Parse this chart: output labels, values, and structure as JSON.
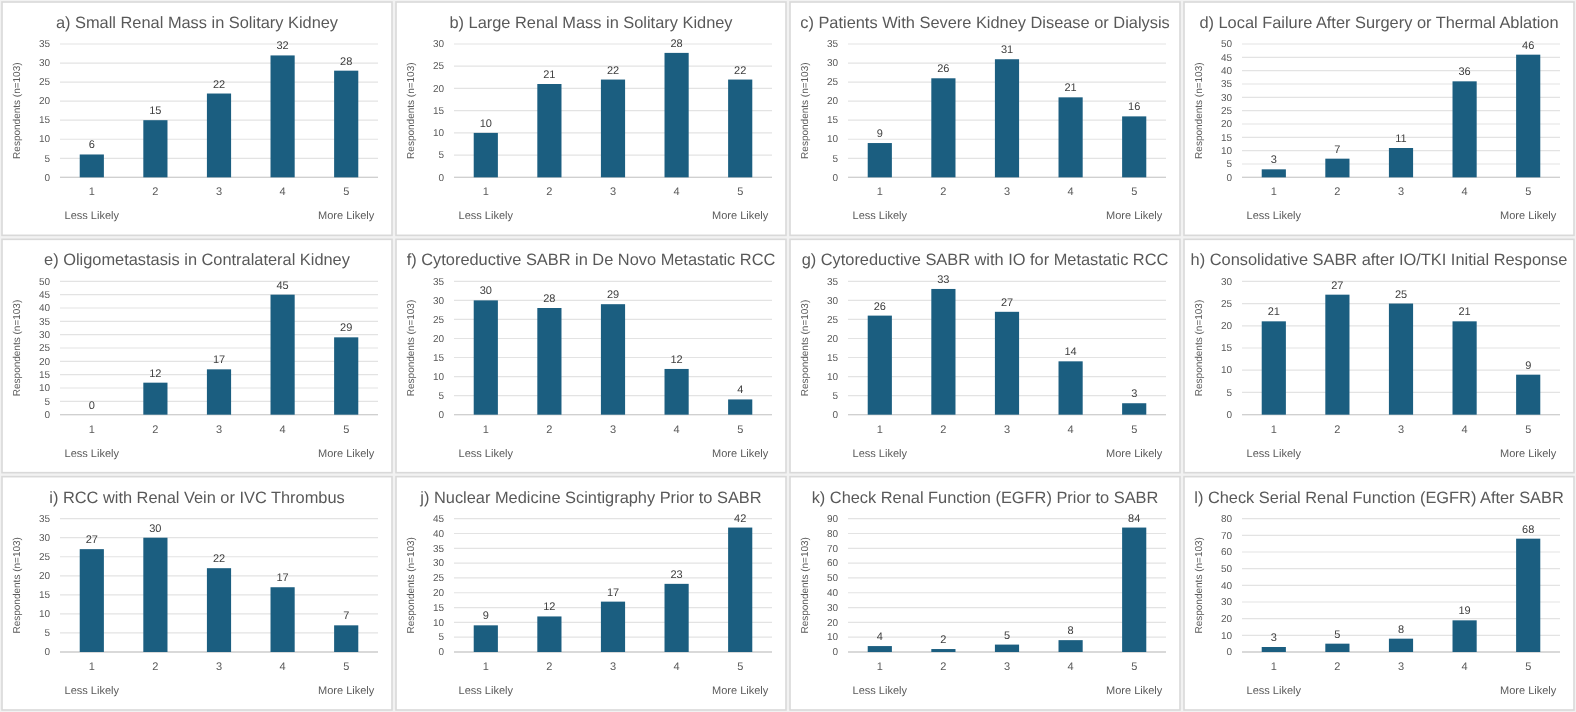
{
  "chart_data": [
    {
      "type": "bar",
      "title": "a) Small Renal Mass in Solitary Kidney",
      "ylabel": "Respondents (n=103)",
      "categories": [
        "1",
        "2",
        "3",
        "4",
        "5"
      ],
      "values": [
        6,
        15,
        22,
        32,
        28
      ],
      "color": "#1b5e80",
      "ylim": [
        0,
        35
      ],
      "yticks": [
        0,
        5,
        10,
        15,
        20,
        25,
        30,
        35
      ],
      "grid": "y",
      "data_labels": true,
      "annotations": [
        "Less Likely",
        "More Likely"
      ]
    },
    {
      "type": "bar",
      "title": "b) Large Renal Mass in Solitary Kidney",
      "ylabel": "Respondents (n=103)",
      "categories": [
        "1",
        "2",
        "3",
        "4",
        "5"
      ],
      "values": [
        10,
        21,
        22,
        28,
        22
      ],
      "color": "#1b5e80",
      "ylim": [
        0,
        30
      ],
      "yticks": [
        0,
        5,
        10,
        15,
        20,
        25,
        30
      ],
      "grid": "y",
      "data_labels": true,
      "annotations": [
        "Less Likely",
        "More Likely"
      ]
    },
    {
      "type": "bar",
      "title": "c) Patients With Severe Kidney Disease or Dialysis",
      "ylabel": "Respondents (n=103)",
      "categories": [
        "1",
        "2",
        "3",
        "4",
        "5"
      ],
      "values": [
        9,
        26,
        31,
        21,
        16
      ],
      "color": "#1b5e80",
      "ylim": [
        0,
        35
      ],
      "yticks": [
        0,
        5,
        10,
        15,
        20,
        25,
        30,
        35
      ],
      "grid": "y",
      "data_labels": true,
      "annotations": [
        "Less Likely",
        "More Likely"
      ]
    },
    {
      "type": "bar",
      "title": "d) Local Failure After Surgery or Thermal Ablation",
      "ylabel": "Respondents (n=103)",
      "categories": [
        "1",
        "2",
        "3",
        "4",
        "5"
      ],
      "values": [
        3,
        7,
        11,
        36,
        46
      ],
      "color": "#1b5e80",
      "ylim": [
        0,
        50
      ],
      "yticks": [
        0,
        5,
        10,
        15,
        20,
        25,
        30,
        35,
        40,
        45,
        50
      ],
      "grid": "y",
      "data_labels": true,
      "annotations": [
        "Less Likely",
        "More Likely"
      ]
    },
    {
      "type": "bar",
      "title": "e) Oligometastasis in Contralateral Kidney",
      "ylabel": "Respondents (n=103)",
      "categories": [
        "1",
        "2",
        "3",
        "4",
        "5"
      ],
      "values": [
        0,
        12,
        17,
        45,
        29
      ],
      "color": "#1b5e80",
      "ylim": [
        0,
        50
      ],
      "yticks": [
        0,
        5,
        10,
        15,
        20,
        25,
        30,
        35,
        40,
        45,
        50
      ],
      "grid": "y",
      "data_labels": true,
      "annotations": [
        "Less Likely",
        "More Likely"
      ]
    },
    {
      "type": "bar",
      "title": "f) Cytoreductive SABR in De Novo Metastatic RCC",
      "ylabel": "Respondents (n=103)",
      "categories": [
        "1",
        "2",
        "3",
        "4",
        "5"
      ],
      "values": [
        30,
        28,
        29,
        12,
        4
      ],
      "color": "#1b5e80",
      "ylim": [
        0,
        35
      ],
      "yticks": [
        0,
        5,
        10,
        15,
        20,
        25,
        30,
        35
      ],
      "grid": "y",
      "data_labels": true,
      "annotations": [
        "Less Likely",
        "More Likely"
      ]
    },
    {
      "type": "bar",
      "title": "g) Cytoreductive SABR with IO for Metastatic RCC",
      "ylabel": "Respondents (n=103)",
      "categories": [
        "1",
        "2",
        "3",
        "4",
        "5"
      ],
      "values": [
        26,
        33,
        27,
        14,
        3
      ],
      "color": "#1b5e80",
      "ylim": [
        0,
        35
      ],
      "yticks": [
        0,
        5,
        10,
        15,
        20,
        25,
        30,
        35
      ],
      "grid": "y",
      "data_labels": true,
      "annotations": [
        "Less Likely",
        "More Likely"
      ]
    },
    {
      "type": "bar",
      "title": "h) Consolidative SABR after IO/TKI Initial Response",
      "ylabel": "Respondents (n=103)",
      "categories": [
        "1",
        "2",
        "3",
        "4",
        "5"
      ],
      "values": [
        21,
        27,
        25,
        21,
        9
      ],
      "color": "#1b5e80",
      "ylim": [
        0,
        30
      ],
      "yticks": [
        0,
        5,
        10,
        15,
        20,
        25,
        30
      ],
      "grid": "y",
      "data_labels": true,
      "annotations": [
        "Less Likely",
        "More Likely"
      ]
    },
    {
      "type": "bar",
      "title": "i) RCC with Renal Vein or IVC Thrombus",
      "ylabel": "Respondents (n=103)",
      "categories": [
        "1",
        "2",
        "3",
        "4",
        "5"
      ],
      "values": [
        27,
        30,
        22,
        17,
        7
      ],
      "color": "#1b5e80",
      "ylim": [
        0,
        35
      ],
      "yticks": [
        0,
        5,
        10,
        15,
        20,
        25,
        30,
        35
      ],
      "grid": "y",
      "data_labels": true,
      "annotations": [
        "Less Likely",
        "More Likely"
      ]
    },
    {
      "type": "bar",
      "title": "j) Nuclear Medicine Scintigraphy Prior to SABR",
      "ylabel": "Respondents (n=103)",
      "categories": [
        "1",
        "2",
        "3",
        "4",
        "5"
      ],
      "values": [
        9,
        12,
        17,
        23,
        42
      ],
      "color": "#1b5e80",
      "ylim": [
        0,
        45
      ],
      "yticks": [
        0,
        5,
        10,
        15,
        20,
        25,
        30,
        35,
        40,
        45
      ],
      "grid": "y",
      "data_labels": true,
      "annotations": [
        "Less Likely",
        "More Likely"
      ]
    },
    {
      "type": "bar",
      "title": "k) Check Renal Function (EGFR) Prior to SABR",
      "ylabel": "Respondents (n=103)",
      "categories": [
        "1",
        "2",
        "3",
        "4",
        "5"
      ],
      "values": [
        4,
        2,
        5,
        8,
        84
      ],
      "color": "#1b5e80",
      "ylim": [
        0,
        90
      ],
      "yticks": [
        0,
        10,
        20,
        30,
        40,
        50,
        60,
        70,
        80,
        90
      ],
      "grid": "y",
      "data_labels": true,
      "annotations": [
        "Less Likely",
        "More Likely"
      ]
    },
    {
      "type": "bar",
      "title": "l) Check Serial Renal Function (EGFR) After SABR",
      "ylabel": "Respondents (n=103)",
      "categories": [
        "1",
        "2",
        "3",
        "4",
        "5"
      ],
      "values": [
        3,
        5,
        8,
        19,
        68
      ],
      "color": "#1b5e80",
      "ylim": [
        0,
        80
      ],
      "yticks": [
        0,
        10,
        20,
        30,
        40,
        50,
        60,
        70,
        80
      ],
      "grid": "y",
      "data_labels": true,
      "annotations": [
        "Less Likely",
        "More Likely"
      ]
    }
  ]
}
